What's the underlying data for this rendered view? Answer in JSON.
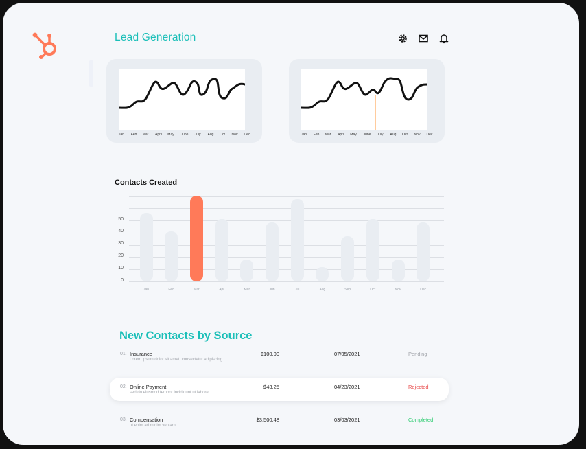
{
  "app": {
    "title": "Lead Generation"
  },
  "header_icons": [
    "gear-icon",
    "mail-icon",
    "bell-icon"
  ],
  "colors": {
    "accent": "#1bbfb8",
    "brand": "#ff7a59",
    "bar": "#e9edf2",
    "pending": "#a0a4aa",
    "rejected": "#e84b4b",
    "completed": "#2ecc71"
  },
  "sparkline_months": [
    "Jan",
    "Feb",
    "Mar",
    "April",
    "May",
    "June",
    "July",
    "Aug",
    "Oct",
    "Nov",
    "Dec"
  ],
  "contacts_chart": {
    "title": "Contacts Created",
    "chart_data": {
      "type": "bar",
      "categories": [
        "Jan",
        "Feb",
        "Mar",
        "Apr",
        "Mar",
        "Jun",
        "Jul",
        "Aug",
        "Sep",
        "Oct",
        "Nov",
        "Dec"
      ],
      "values": [
        56,
        41,
        70,
        51,
        18,
        48,
        67,
        12,
        37,
        51,
        18,
        48
      ],
      "highlight_index": 2,
      "yticks": [
        "0",
        "10",
        "20",
        "30",
        "40",
        "50"
      ],
      "ylim": [
        0,
        70
      ],
      "grid": true
    }
  },
  "sources": {
    "title": "New Contacts by Source",
    "rows": [
      {
        "num": "01.",
        "name": "Insurance",
        "desc": "Lorem ipsum dolor sit amet, consectetur adipiscing",
        "amount": "$100.00",
        "date": "07/05/2021",
        "status": "Pending"
      },
      {
        "num": "02.",
        "name": "Online Payment",
        "desc": "sed do eiusmod tempor incididunt ut labore",
        "amount": "$43.25",
        "date": "04/23/2021",
        "status": "Rejected"
      },
      {
        "num": "03.",
        "name": "Compensation",
        "desc": "ut enim ad minim veniam",
        "amount": "$3,500.48",
        "date": "03/03/2021",
        "status": "Completed"
      }
    ]
  }
}
